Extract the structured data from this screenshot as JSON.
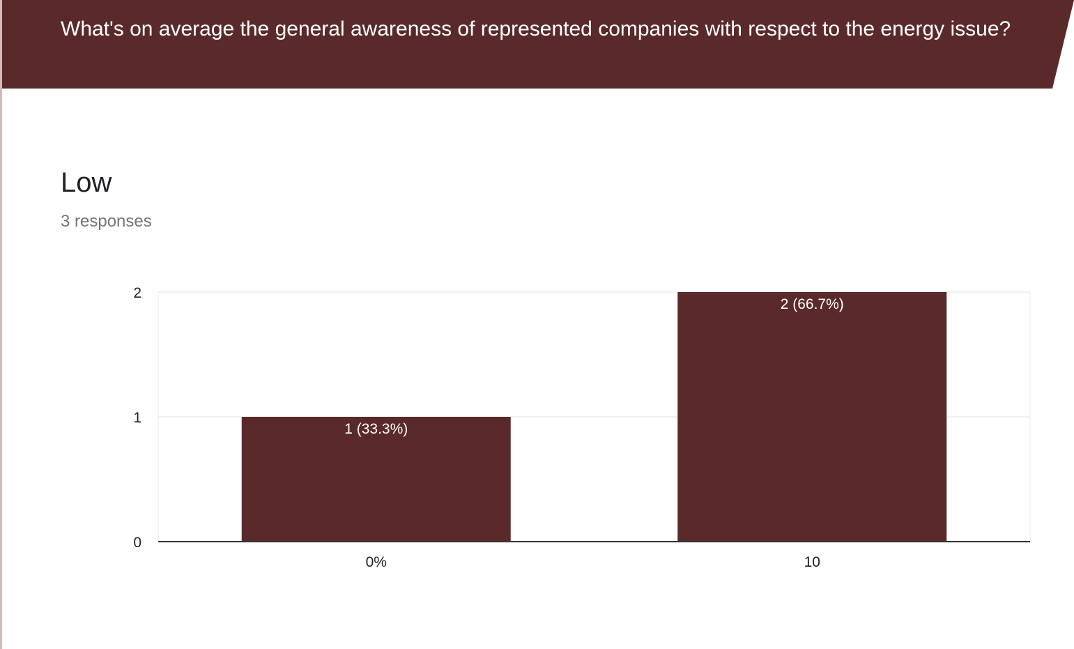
{
  "question": "What's on average the general awareness of represented companies with respect to the energy issue?",
  "colors": {
    "accent": "#5a2a2b"
  },
  "chart_data": {
    "type": "bar",
    "title": "Low",
    "subtitle": "3 responses",
    "categories": [
      "0%",
      "10"
    ],
    "values": [
      1,
      2
    ],
    "data_labels": [
      "1 (33.3%)",
      "2 (66.7%)"
    ],
    "yticks": [
      "0",
      "1",
      "2"
    ],
    "ylim": [
      0,
      2
    ],
    "grid": true
  }
}
